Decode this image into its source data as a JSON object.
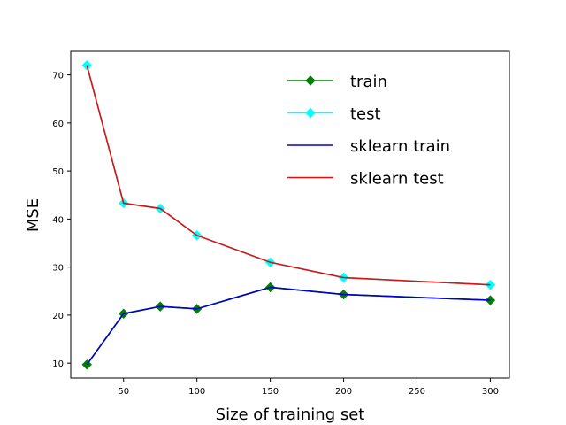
{
  "chart_data": {
    "type": "line",
    "title": "",
    "xlabel": "Size of training set",
    "ylabel": "MSE",
    "xlim": [
      14,
      313
    ],
    "ylim": [
      6.9,
      74.9
    ],
    "xticks": [
      50,
      100,
      150,
      200,
      250,
      300
    ],
    "yticks": [
      10,
      20,
      30,
      40,
      50,
      60,
      70
    ],
    "grid": false,
    "legend_position": "top-right",
    "x": [
      25,
      50,
      75,
      100,
      150,
      200,
      300
    ],
    "series": [
      {
        "name": "train",
        "color": "#008000",
        "style": "diamond-line",
        "values": [
          9.7,
          20.3,
          21.8,
          21.3,
          25.8,
          24.3,
          23.1
        ]
      },
      {
        "name": "test",
        "color": "#00ffff",
        "style": "diamond-line",
        "values": [
          72.0,
          43.3,
          42.2,
          36.6,
          31.0,
          27.8,
          26.3
        ]
      },
      {
        "name": "sklearn train",
        "color": "#0000cc",
        "style": "line",
        "values": [
          9.7,
          20.3,
          21.8,
          21.3,
          25.8,
          24.3,
          23.1
        ]
      },
      {
        "name": "sklearn test",
        "color": "#dd1111",
        "style": "line",
        "values": [
          72.0,
          43.3,
          42.2,
          36.6,
          31.0,
          27.8,
          26.3
        ]
      }
    ]
  }
}
